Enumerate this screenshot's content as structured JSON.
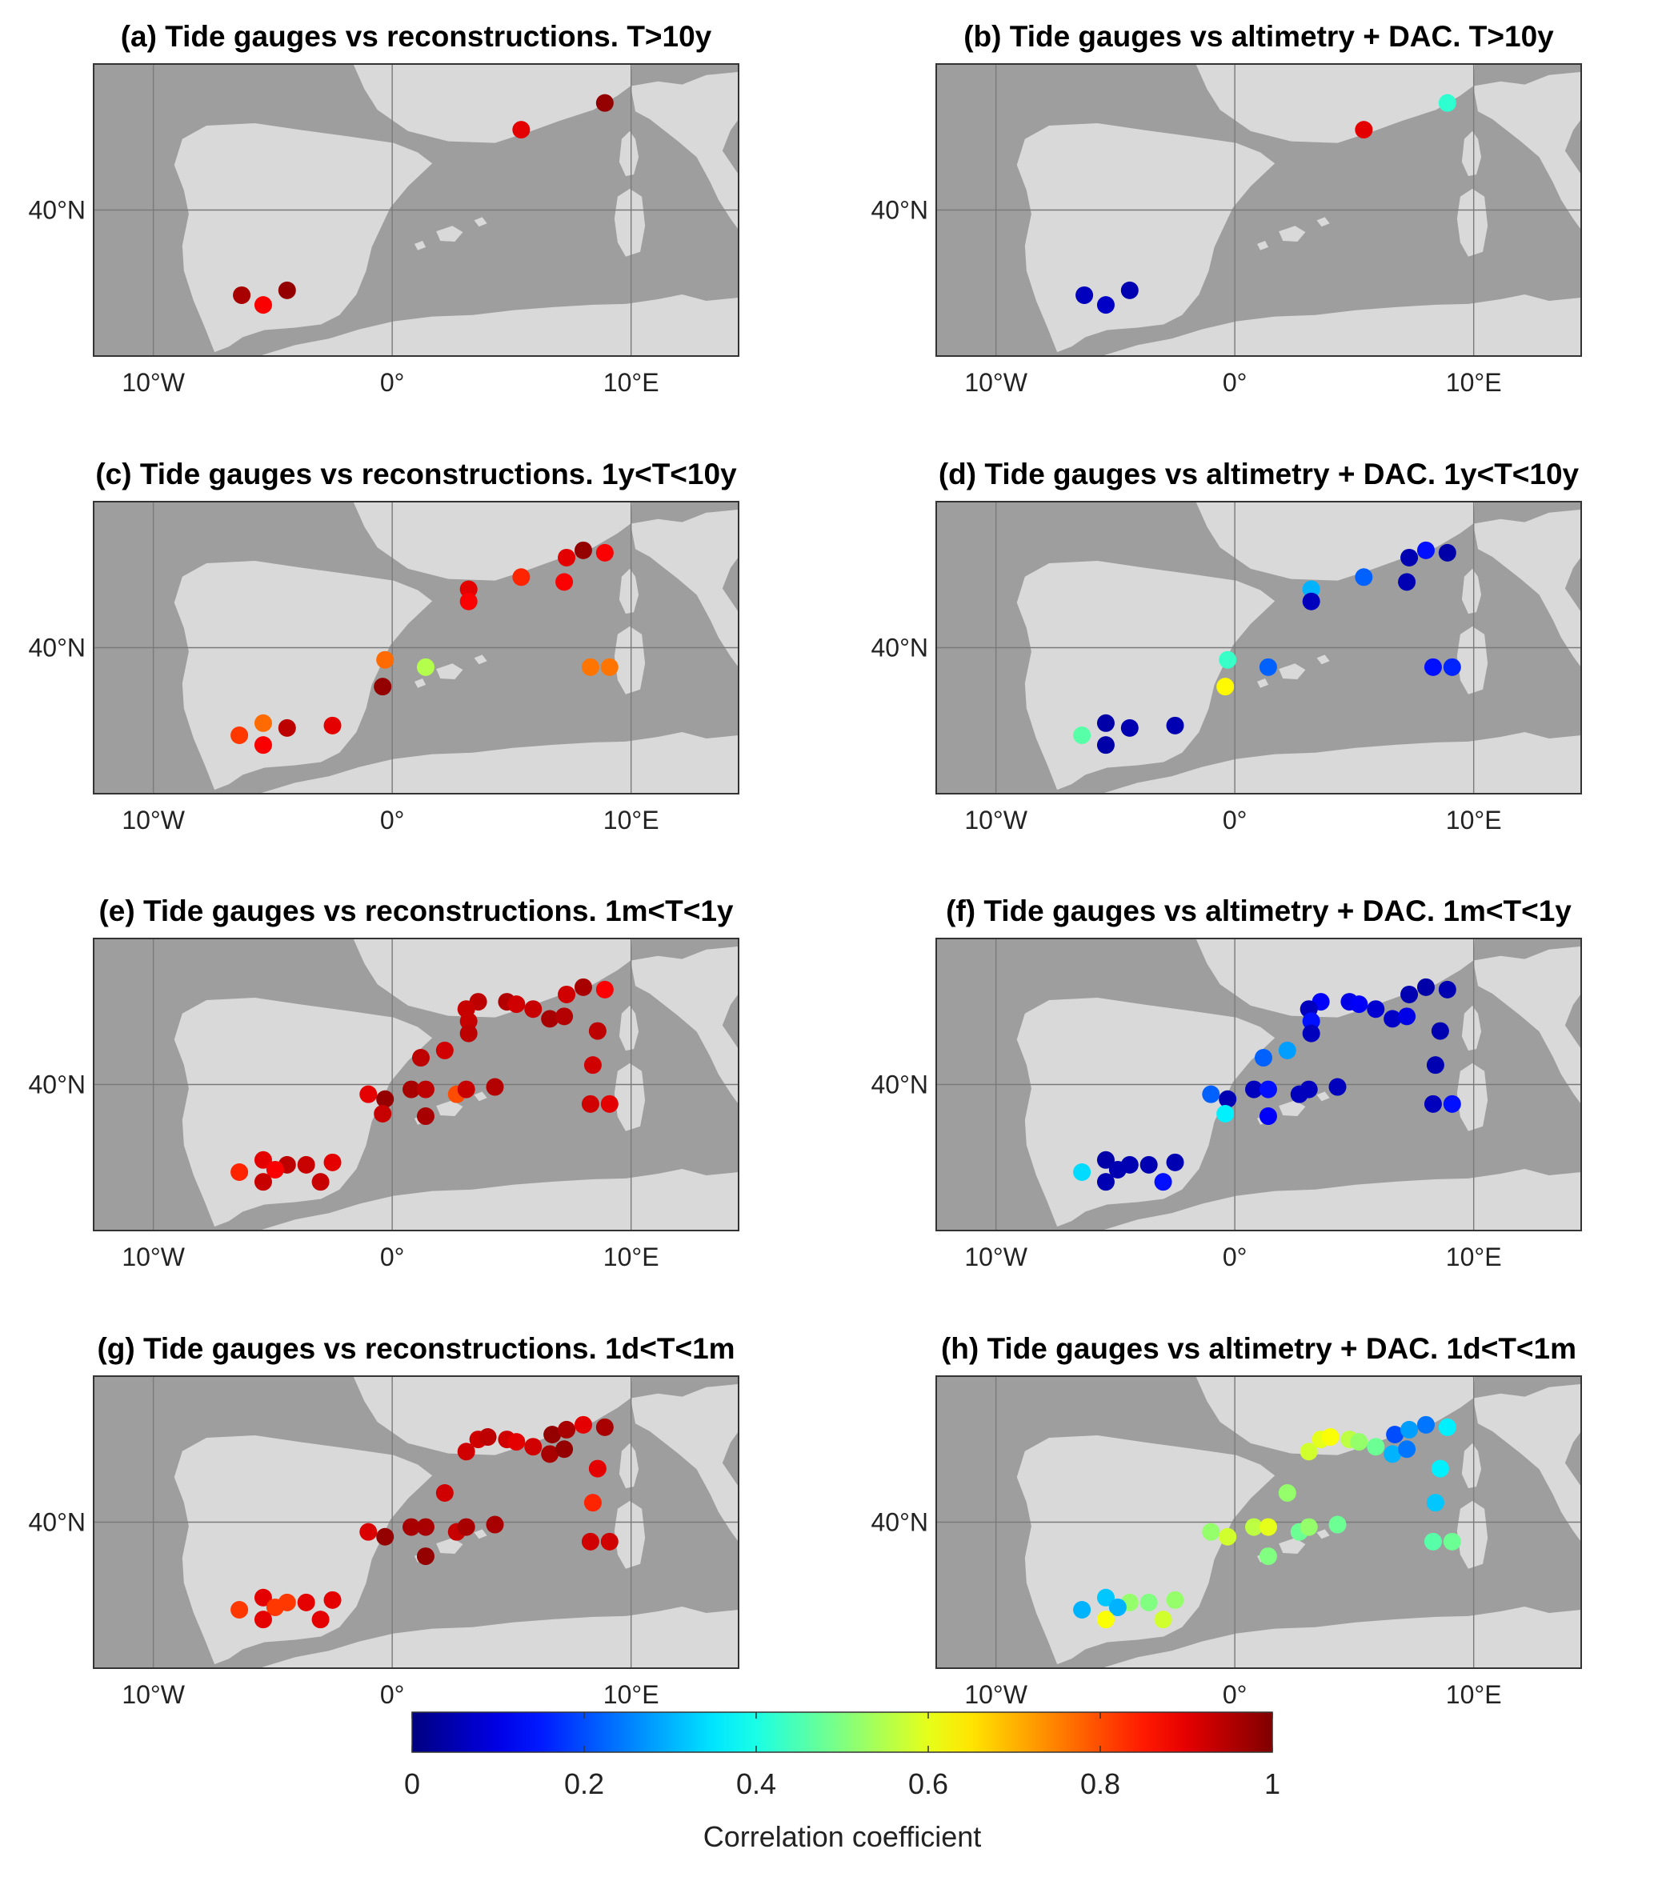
{
  "figure": {
    "colorbar": {
      "label": "Correlation coefficient",
      "ticks": [
        "0",
        "0.2",
        "0.4",
        "0.6",
        "0.8",
        "1"
      ],
      "colormap": "jet",
      "range": [
        0,
        1
      ]
    },
    "map_extent": {
      "lon": [
        -12.5,
        14.5
      ],
      "lat": [
        34,
        46
      ]
    },
    "axis_ticks": {
      "x": [
        {
          "lon": -10,
          "label": "10°W"
        },
        {
          "lon": 0,
          "label": "0°"
        },
        {
          "lon": 10,
          "label": "10°E"
        }
      ],
      "y": [
        {
          "lat": 40,
          "label": "40°N"
        }
      ]
    },
    "colors": {
      "sea": "#9e9e9e",
      "land": "#d9d9d9",
      "grid": "#7a7a7a",
      "background": "#ffffff"
    }
  },
  "panels": [
    {
      "id": "a",
      "title": "(a) Tide gauges vs reconstructions. T>10y",
      "stations": [
        {
          "lon": 5.4,
          "lat": 43.3,
          "r": 0.9
        },
        {
          "lon": 8.9,
          "lat": 44.4,
          "r": 0.98
        },
        {
          "lon": -4.4,
          "lat": 36.7,
          "r": 0.98
        },
        {
          "lon": -6.3,
          "lat": 36.5,
          "r": 0.96
        },
        {
          "lon": -5.4,
          "lat": 36.1,
          "r": 0.88
        }
      ]
    },
    {
      "id": "b",
      "title": "(b) Tide gauges vs altimetry + DAC. T>10y",
      "stations": [
        {
          "lon": 5.4,
          "lat": 43.3,
          "r": 0.9
        },
        {
          "lon": 8.9,
          "lat": 44.4,
          "r": 0.42
        },
        {
          "lon": -4.4,
          "lat": 36.7,
          "r": 0.05
        },
        {
          "lon": -6.3,
          "lat": 36.5,
          "r": 0.06
        },
        {
          "lon": -5.4,
          "lat": 36.1,
          "r": 0.07
        }
      ]
    },
    {
      "id": "c",
      "title": "(c) Tide gauges vs reconstructions. 1y<T<10y",
      "stations": [
        {
          "lon": 7.3,
          "lat": 43.7,
          "r": 0.9
        },
        {
          "lon": 8.0,
          "lat": 44.0,
          "r": 0.98
        },
        {
          "lon": 8.9,
          "lat": 43.9,
          "r": 0.88
        },
        {
          "lon": 5.4,
          "lat": 42.9,
          "r": 0.84
        },
        {
          "lon": 7.2,
          "lat": 42.7,
          "r": 0.88
        },
        {
          "lon": 3.2,
          "lat": 42.4,
          "r": 0.9
        },
        {
          "lon": 3.2,
          "lat": 41.9,
          "r": 0.88
        },
        {
          "lon": -0.3,
          "lat": 39.5,
          "r": 0.77
        },
        {
          "lon": 1.4,
          "lat": 39.2,
          "r": 0.55
        },
        {
          "lon": 8.3,
          "lat": 39.2,
          "r": 0.76
        },
        {
          "lon": 9.1,
          "lat": 39.2,
          "r": 0.76
        },
        {
          "lon": -0.4,
          "lat": 38.4,
          "r": 0.98
        },
        {
          "lon": -5.4,
          "lat": 36.9,
          "r": 0.77
        },
        {
          "lon": -4.4,
          "lat": 36.7,
          "r": 0.94
        },
        {
          "lon": -2.5,
          "lat": 36.8,
          "r": 0.9
        },
        {
          "lon": -6.4,
          "lat": 36.4,
          "r": 0.82
        },
        {
          "lon": -5.4,
          "lat": 36.0,
          "r": 0.88
        }
      ]
    },
    {
      "id": "d",
      "title": "(d) Tide gauges vs altimetry + DAC. 1y<T<10y",
      "stations": [
        {
          "lon": 7.3,
          "lat": 43.7,
          "r": 0.05
        },
        {
          "lon": 8.0,
          "lat": 44.0,
          "r": 0.14
        },
        {
          "lon": 8.9,
          "lat": 43.9,
          "r": 0.04
        },
        {
          "lon": 5.4,
          "lat": 42.9,
          "r": 0.22
        },
        {
          "lon": 7.2,
          "lat": 42.7,
          "r": 0.05
        },
        {
          "lon": 3.2,
          "lat": 42.4,
          "r": 0.3
        },
        {
          "lon": 3.2,
          "lat": 41.9,
          "r": 0.06
        },
        {
          "lon": -0.3,
          "lat": 39.5,
          "r": 0.43
        },
        {
          "lon": 1.4,
          "lat": 39.2,
          "r": 0.22
        },
        {
          "lon": 8.3,
          "lat": 39.2,
          "r": 0.14
        },
        {
          "lon": 9.1,
          "lat": 39.2,
          "r": 0.16
        },
        {
          "lon": -0.4,
          "lat": 38.4,
          "r": 0.63
        },
        {
          "lon": -5.4,
          "lat": 36.9,
          "r": 0.04
        },
        {
          "lon": -4.4,
          "lat": 36.7,
          "r": 0.05
        },
        {
          "lon": -2.5,
          "lat": 36.8,
          "r": 0.05
        },
        {
          "lon": -6.4,
          "lat": 36.4,
          "r": 0.46
        },
        {
          "lon": -5.4,
          "lat": 36.0,
          "r": 0.04
        }
      ]
    },
    {
      "id": "e",
      "title": "(e) Tide gauges vs reconstructions. 1m<T<1y",
      "stations": [
        {
          "lon": 7.3,
          "lat": 43.7,
          "r": 0.92
        },
        {
          "lon": 8.0,
          "lat": 44.0,
          "r": 0.96
        },
        {
          "lon": 8.9,
          "lat": 43.9,
          "r": 0.88
        },
        {
          "lon": 3.6,
          "lat": 43.4,
          "r": 0.94
        },
        {
          "lon": 4.8,
          "lat": 43.4,
          "r": 0.95
        },
        {
          "lon": 5.2,
          "lat": 43.3,
          "r": 0.92
        },
        {
          "lon": 5.9,
          "lat": 43.1,
          "r": 0.93
        },
        {
          "lon": 6.6,
          "lat": 42.7,
          "r": 0.96
        },
        {
          "lon": 7.2,
          "lat": 42.8,
          "r": 0.95
        },
        {
          "lon": 3.1,
          "lat": 43.1,
          "r": 0.93
        },
        {
          "lon": 3.2,
          "lat": 42.6,
          "r": 0.93
        },
        {
          "lon": 3.2,
          "lat": 42.1,
          "r": 0.94
        },
        {
          "lon": 8.6,
          "lat": 42.2,
          "r": 0.94
        },
        {
          "lon": 2.2,
          "lat": 41.4,
          "r": 0.92
        },
        {
          "lon": 1.2,
          "lat": 41.1,
          "r": 0.94
        },
        {
          "lon": 8.4,
          "lat": 40.8,
          "r": 0.92
        },
        {
          "lon": -1.0,
          "lat": 39.6,
          "r": 0.9
        },
        {
          "lon": -0.3,
          "lat": 39.4,
          "r": 0.98
        },
        {
          "lon": 0.8,
          "lat": 39.8,
          "r": 0.96
        },
        {
          "lon": 1.4,
          "lat": 39.8,
          "r": 0.94
        },
        {
          "lon": 2.7,
          "lat": 39.6,
          "r": 0.8
        },
        {
          "lon": 3.1,
          "lat": 39.8,
          "r": 0.93
        },
        {
          "lon": 4.3,
          "lat": 39.9,
          "r": 0.95
        },
        {
          "lon": 8.3,
          "lat": 39.2,
          "r": 0.92
        },
        {
          "lon": 9.1,
          "lat": 39.2,
          "r": 0.9
        },
        {
          "lon": -0.4,
          "lat": 38.8,
          "r": 0.93
        },
        {
          "lon": 1.4,
          "lat": 38.7,
          "r": 0.96
        },
        {
          "lon": -5.4,
          "lat": 36.9,
          "r": 0.9
        },
        {
          "lon": -4.4,
          "lat": 36.7,
          "r": 0.94
        },
        {
          "lon": -3.6,
          "lat": 36.7,
          "r": 0.93
        },
        {
          "lon": -2.5,
          "lat": 36.8,
          "r": 0.9
        },
        {
          "lon": -6.4,
          "lat": 36.4,
          "r": 0.84
        },
        {
          "lon": -4.9,
          "lat": 36.5,
          "r": 0.88
        },
        {
          "lon": -5.4,
          "lat": 36.0,
          "r": 0.93
        },
        {
          "lon": -3.0,
          "lat": 36.0,
          "r": 0.93
        }
      ]
    },
    {
      "id": "f",
      "title": "(f) Tide gauges vs altimetry + DAC. 1m<T<1y",
      "stations": [
        {
          "lon": 7.3,
          "lat": 43.7,
          "r": 0.05
        },
        {
          "lon": 8.0,
          "lat": 44.0,
          "r": 0.04
        },
        {
          "lon": 8.9,
          "lat": 43.9,
          "r": 0.05
        },
        {
          "lon": 3.6,
          "lat": 43.4,
          "r": 0.12
        },
        {
          "lon": 4.8,
          "lat": 43.4,
          "r": 0.1
        },
        {
          "lon": 5.2,
          "lat": 43.3,
          "r": 0.12
        },
        {
          "lon": 5.9,
          "lat": 43.1,
          "r": 0.08
        },
        {
          "lon": 6.6,
          "lat": 42.7,
          "r": 0.07
        },
        {
          "lon": 7.2,
          "lat": 42.8,
          "r": 0.1
        },
        {
          "lon": 3.1,
          "lat": 43.1,
          "r": 0.06
        },
        {
          "lon": 3.2,
          "lat": 42.6,
          "r": 0.14
        },
        {
          "lon": 3.2,
          "lat": 42.1,
          "r": 0.06
        },
        {
          "lon": 8.6,
          "lat": 42.2,
          "r": 0.05
        },
        {
          "lon": 2.2,
          "lat": 41.4,
          "r": 0.28
        },
        {
          "lon": 1.2,
          "lat": 41.1,
          "r": 0.22
        },
        {
          "lon": 8.4,
          "lat": 40.8,
          "r": 0.05
        },
        {
          "lon": -1.0,
          "lat": 39.6,
          "r": 0.22
        },
        {
          "lon": -0.3,
          "lat": 39.4,
          "r": 0.05
        },
        {
          "lon": 0.8,
          "lat": 39.8,
          "r": 0.06
        },
        {
          "lon": 1.4,
          "lat": 39.8,
          "r": 0.14
        },
        {
          "lon": 2.7,
          "lat": 39.6,
          "r": 0.06
        },
        {
          "lon": 3.1,
          "lat": 39.8,
          "r": 0.06
        },
        {
          "lon": 4.3,
          "lat": 39.9,
          "r": 0.06
        },
        {
          "lon": 8.3,
          "lat": 39.2,
          "r": 0.06
        },
        {
          "lon": 9.1,
          "lat": 39.2,
          "r": 0.14
        },
        {
          "lon": -0.4,
          "lat": 38.8,
          "r": 0.36
        },
        {
          "lon": 1.4,
          "lat": 38.7,
          "r": 0.12
        },
        {
          "lon": -5.4,
          "lat": 36.9,
          "r": 0.04
        },
        {
          "lon": -4.4,
          "lat": 36.7,
          "r": 0.05
        },
        {
          "lon": -3.6,
          "lat": 36.7,
          "r": 0.05
        },
        {
          "lon": -2.5,
          "lat": 36.8,
          "r": 0.05
        },
        {
          "lon": -6.4,
          "lat": 36.4,
          "r": 0.34
        },
        {
          "lon": -4.9,
          "lat": 36.5,
          "r": 0.05
        },
        {
          "lon": -5.4,
          "lat": 36.0,
          "r": 0.05
        },
        {
          "lon": -3.0,
          "lat": 36.0,
          "r": 0.14
        }
      ]
    },
    {
      "id": "g",
      "title": "(g) Tide gauges vs reconstructions. 1d<T<1m",
      "stations": [
        {
          "lon": 6.7,
          "lat": 43.6,
          "r": 0.98
        },
        {
          "lon": 7.3,
          "lat": 43.8,
          "r": 0.96
        },
        {
          "lon": 8.0,
          "lat": 44.0,
          "r": 0.9
        },
        {
          "lon": 8.9,
          "lat": 43.9,
          "r": 0.96
        },
        {
          "lon": 3.6,
          "lat": 43.4,
          "r": 0.92
        },
        {
          "lon": 4.0,
          "lat": 43.5,
          "r": 0.94
        },
        {
          "lon": 4.8,
          "lat": 43.4,
          "r": 0.92
        },
        {
          "lon": 5.2,
          "lat": 43.3,
          "r": 0.9
        },
        {
          "lon": 5.9,
          "lat": 43.1,
          "r": 0.92
        },
        {
          "lon": 6.6,
          "lat": 42.8,
          "r": 0.96
        },
        {
          "lon": 7.2,
          "lat": 43.0,
          "r": 0.98
        },
        {
          "lon": 3.1,
          "lat": 42.9,
          "r": 0.92
        },
        {
          "lon": 8.6,
          "lat": 42.2,
          "r": 0.9
        },
        {
          "lon": 2.2,
          "lat": 41.2,
          "r": 0.92
        },
        {
          "lon": 8.4,
          "lat": 40.8,
          "r": 0.84
        },
        {
          "lon": -1.0,
          "lat": 39.6,
          "r": 0.91
        },
        {
          "lon": -0.3,
          "lat": 39.4,
          "r": 0.98
        },
        {
          "lon": 0.8,
          "lat": 39.8,
          "r": 0.96
        },
        {
          "lon": 1.4,
          "lat": 39.8,
          "r": 0.96
        },
        {
          "lon": 2.7,
          "lat": 39.6,
          "r": 0.93
        },
        {
          "lon": 3.1,
          "lat": 39.8,
          "r": 0.96
        },
        {
          "lon": 4.3,
          "lat": 39.9,
          "r": 0.96
        },
        {
          "lon": 8.3,
          "lat": 39.2,
          "r": 0.92
        },
        {
          "lon": 9.1,
          "lat": 39.2,
          "r": 0.92
        },
        {
          "lon": 1.4,
          "lat": 38.6,
          "r": 0.98
        },
        {
          "lon": -5.4,
          "lat": 36.9,
          "r": 0.9
        },
        {
          "lon": -4.4,
          "lat": 36.7,
          "r": 0.82
        },
        {
          "lon": -3.6,
          "lat": 36.7,
          "r": 0.9
        },
        {
          "lon": -2.5,
          "lat": 36.8,
          "r": 0.9
        },
        {
          "lon": -6.4,
          "lat": 36.4,
          "r": 0.82
        },
        {
          "lon": -4.9,
          "lat": 36.5,
          "r": 0.82
        },
        {
          "lon": -5.4,
          "lat": 36.0,
          "r": 0.9
        },
        {
          "lon": -3.0,
          "lat": 36.0,
          "r": 0.9
        }
      ]
    },
    {
      "id": "h",
      "title": "(h) Tide gauges vs altimetry + DAC. 1d<T<1m",
      "stations": [
        {
          "lon": 6.7,
          "lat": 43.6,
          "r": 0.2
        },
        {
          "lon": 7.3,
          "lat": 43.8,
          "r": 0.28
        },
        {
          "lon": 8.0,
          "lat": 44.0,
          "r": 0.24
        },
        {
          "lon": 8.9,
          "lat": 43.9,
          "r": 0.36
        },
        {
          "lon": 3.6,
          "lat": 43.4,
          "r": 0.6
        },
        {
          "lon": 4.0,
          "lat": 43.5,
          "r": 0.62
        },
        {
          "lon": 4.8,
          "lat": 43.4,
          "r": 0.56
        },
        {
          "lon": 5.2,
          "lat": 43.3,
          "r": 0.52
        },
        {
          "lon": 5.9,
          "lat": 43.1,
          "r": 0.48
        },
        {
          "lon": 6.6,
          "lat": 42.8,
          "r": 0.3
        },
        {
          "lon": 7.2,
          "lat": 43.0,
          "r": 0.24
        },
        {
          "lon": 3.1,
          "lat": 42.9,
          "r": 0.58
        },
        {
          "lon": 8.6,
          "lat": 42.2,
          "r": 0.36
        },
        {
          "lon": 2.2,
          "lat": 41.2,
          "r": 0.52
        },
        {
          "lon": 8.4,
          "lat": 40.8,
          "r": 0.32
        },
        {
          "lon": -1.0,
          "lat": 39.6,
          "r": 0.52
        },
        {
          "lon": -0.3,
          "lat": 39.4,
          "r": 0.58
        },
        {
          "lon": 0.8,
          "lat": 39.8,
          "r": 0.56
        },
        {
          "lon": 1.4,
          "lat": 39.8,
          "r": 0.6
        },
        {
          "lon": 2.7,
          "lat": 39.6,
          "r": 0.48
        },
        {
          "lon": 3.1,
          "lat": 39.8,
          "r": 0.52
        },
        {
          "lon": 4.3,
          "lat": 39.9,
          "r": 0.48
        },
        {
          "lon": 8.3,
          "lat": 39.2,
          "r": 0.46
        },
        {
          "lon": 9.1,
          "lat": 39.2,
          "r": 0.48
        },
        {
          "lon": 1.4,
          "lat": 38.6,
          "r": 0.5
        },
        {
          "lon": -5.4,
          "lat": 36.9,
          "r": 0.32
        },
        {
          "lon": -4.4,
          "lat": 36.7,
          "r": 0.52
        },
        {
          "lon": -3.6,
          "lat": 36.7,
          "r": 0.5
        },
        {
          "lon": -2.5,
          "lat": 36.8,
          "r": 0.52
        },
        {
          "lon": -6.4,
          "lat": 36.4,
          "r": 0.3
        },
        {
          "lon": -4.9,
          "lat": 36.5,
          "r": 0.3
        },
        {
          "lon": -5.4,
          "lat": 36.0,
          "r": 0.62
        },
        {
          "lon": -3.0,
          "lat": 36.0,
          "r": 0.58
        }
      ]
    }
  ]
}
